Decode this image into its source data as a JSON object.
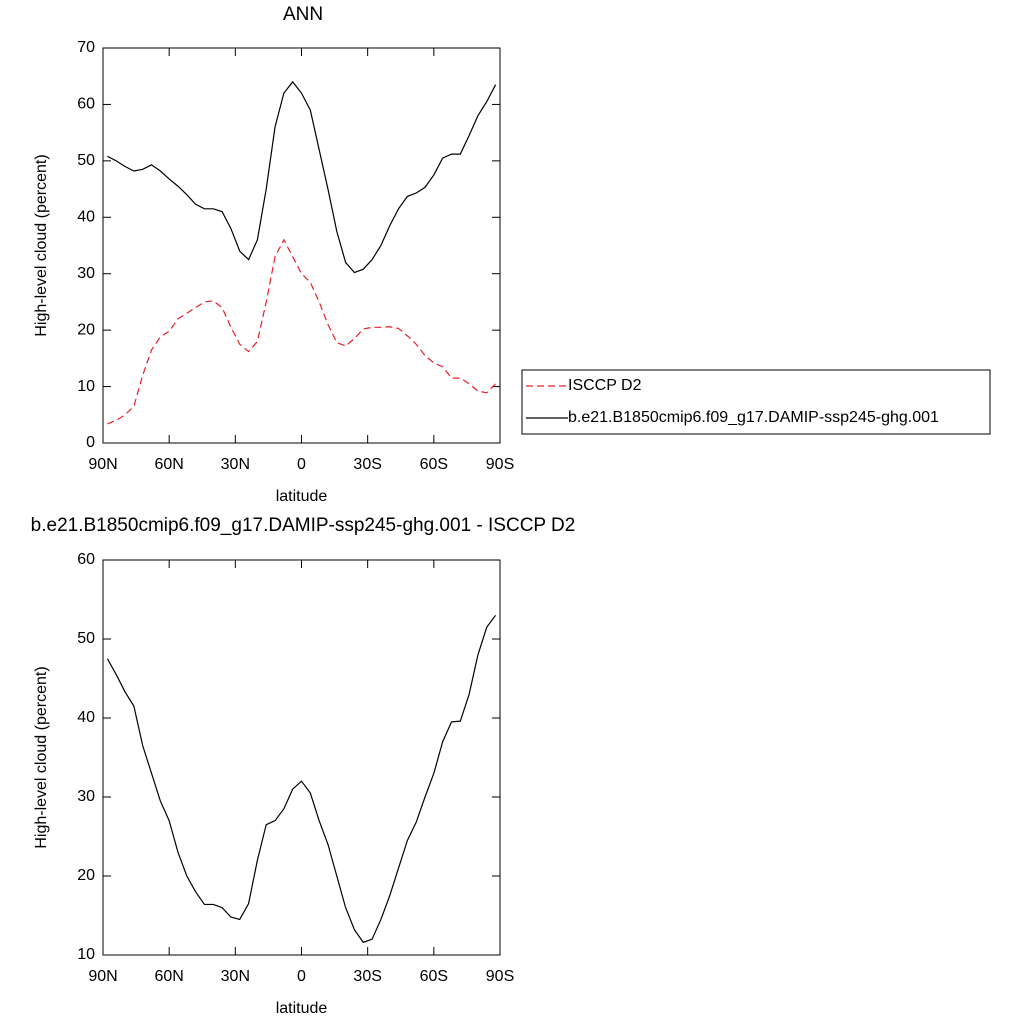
{
  "chart_data": [
    {
      "type": "line",
      "title": "ANN",
      "x_label": "latitude",
      "y_label": "High-level cloud (percent)",
      "x": [
        88,
        84,
        80,
        76,
        72,
        68,
        64,
        60,
        56,
        52,
        48,
        44,
        40,
        36,
        32,
        28,
        24,
        20,
        16,
        12,
        8,
        4,
        0,
        -4,
        -8,
        -12,
        -16,
        -20,
        -24,
        -28,
        -32,
        -36,
        -40,
        -44,
        -48,
        -52,
        -56,
        -60,
        -64,
        -68,
        -72,
        -76,
        -80,
        -84,
        -88
      ],
      "series": [
        {
          "name": "ISCCP D2",
          "color": "#e8202a",
          "style": "dashed",
          "values": [
            3.4,
            4,
            5,
            6.5,
            12,
            16.5,
            18.8,
            19.8,
            22,
            23,
            24,
            25,
            25.2,
            24,
            20.5,
            17.5,
            16.2,
            18,
            25,
            33,
            36,
            33,
            30,
            28.5,
            25,
            21,
            17.8,
            17.2,
            18.5,
            20.2,
            20.5,
            20.5,
            20.6,
            20.3,
            19,
            17.5,
            15.5,
            14.2,
            13.5,
            11.5,
            11.5,
            10.5,
            9.2,
            8.9,
            10.5
          ]
        },
        {
          "name": "b.e21.B1850cmip6.f09_g17.DAMIP-ssp245-ghg.001",
          "color": "#000000",
          "style": "solid",
          "values": [
            50.8,
            50,
            49,
            48.2,
            48.5,
            49.3,
            48.2,
            46.8,
            45.5,
            44,
            42.3,
            41.5,
            41.5,
            41,
            38,
            34,
            32.5,
            36,
            45,
            56,
            62,
            64,
            62,
            59,
            52,
            45,
            37.5,
            32,
            30.2,
            30.8,
            32.5,
            35,
            38.5,
            41.5,
            43.7,
            44.3,
            45.3,
            47.5,
            50.5,
            51.2,
            51.2,
            54.5,
            58,
            60.5,
            63.5
          ]
        }
      ],
      "xlim": [
        90,
        -90
      ],
      "xticks": [
        {
          "value": 90,
          "label": "90N"
        },
        {
          "value": 60,
          "label": "60N"
        },
        {
          "value": 30,
          "label": "30N"
        },
        0,
        {
          "value": -30,
          "label": "30S"
        },
        {
          "value": -60,
          "label": "60S"
        },
        {
          "value": -90,
          "label": "90S"
        }
      ],
      "ylim": [
        0,
        70
      ],
      "yticks": [
        0,
        10,
        20,
        30,
        40,
        50,
        60,
        70
      ],
      "legend": "outside-right"
    },
    {
      "type": "line",
      "title": "b.e21.B1850cmip6.f09_g17.DAMIP-ssp245-ghg.001 - ISCCP D2",
      "x_label": "latitude",
      "y_label": "High-level cloud (percent)",
      "x": [
        88,
        84,
        80,
        76,
        72,
        68,
        64,
        60,
        56,
        52,
        48,
        44,
        40,
        36,
        32,
        28,
        24,
        20,
        16,
        12,
        8,
        4,
        0,
        -4,
        -8,
        -12,
        -16,
        -20,
        -24,
        -28,
        -32,
        -36,
        -40,
        -44,
        -48,
        -52,
        -56,
        -60,
        -64,
        -68,
        -72,
        -76,
        -80,
        -84,
        -88
      ],
      "color": "#000000",
      "values": [
        47.5,
        45.5,
        43.3,
        41.5,
        36.5,
        33,
        29.5,
        27,
        23,
        20,
        18,
        16.4,
        16.4,
        16,
        14.8,
        14.5,
        16.5,
        22,
        26.5,
        27,
        28.5,
        31,
        32,
        30.5,
        27,
        24,
        20,
        16,
        13.2,
        11.6,
        12,
        14.5,
        17.5,
        21,
        24.5,
        26.8,
        30,
        33,
        37,
        39.5,
        39.6,
        43,
        48,
        51.5,
        53
      ],
      "xlim": [
        90,
        -90
      ],
      "xticks": [
        {
          "value": 90,
          "label": "90N"
        },
        {
          "value": 60,
          "label": "60N"
        },
        {
          "value": 30,
          "label": "30N"
        },
        0,
        {
          "value": -30,
          "label": "30S"
        },
        {
          "value": -60,
          "label": "60S"
        },
        {
          "value": -90,
          "label": "90S"
        }
      ],
      "ylim": [
        10,
        60
      ],
      "yticks": [
        10,
        20,
        30,
        40,
        50,
        60
      ]
    }
  ]
}
